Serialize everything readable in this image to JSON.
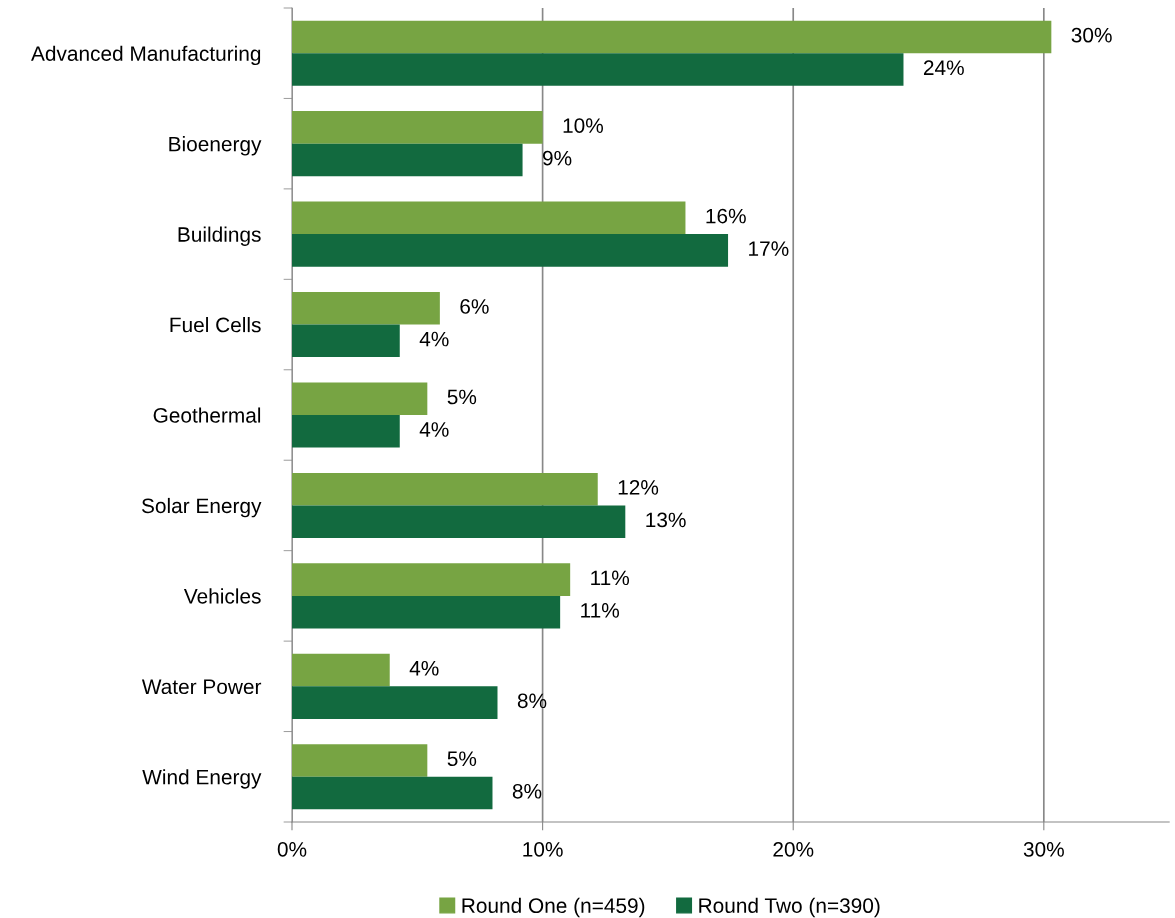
{
  "chart_data": {
    "type": "bar",
    "orientation": "horizontal",
    "categories": [
      "Advanced Manufacturing",
      "Bioenergy",
      "Buildings",
      "Fuel Cells",
      "Geothermal",
      "Solar Energy",
      "Vehicles",
      "Water Power",
      "Wind Energy"
    ],
    "series": [
      {
        "name": "Round One (n=459)",
        "color": "#77a443",
        "values": [
          30.3,
          10.0,
          15.7,
          5.9,
          5.4,
          12.2,
          11.1,
          3.9,
          5.4
        ],
        "value_labels": [
          "30%",
          "10%",
          "16%",
          "6%",
          "5%",
          "12%",
          "11%",
          "4%",
          "5%"
        ]
      },
      {
        "name": "Round Two (n=390)",
        "color": "#126a3f",
        "values": [
          24.4,
          9.2,
          17.4,
          4.3,
          4.3,
          13.3,
          10.7,
          8.2,
          8.0
        ],
        "value_labels": [
          "24%",
          "9%",
          "17%",
          "4%",
          "4%",
          "13%",
          "11%",
          "8%",
          "8%"
        ]
      }
    ],
    "xlim": [
      0,
      35
    ],
    "xticks": [
      {
        "value": 0,
        "label": "0%"
      },
      {
        "value": 10,
        "label": "10%"
      },
      {
        "value": 20,
        "label": "20%"
      },
      {
        "value": 30,
        "label": "30%"
      }
    ],
    "grid": "x",
    "legend": "bottom"
  }
}
